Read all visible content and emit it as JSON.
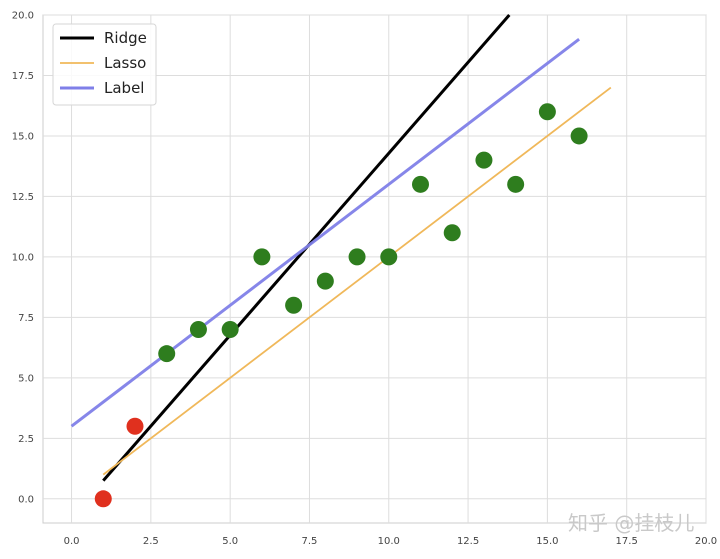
{
  "chart_data": {
    "type": "scatter",
    "xlim": [
      -0.9,
      20.0
    ],
    "ylim": [
      -1.0,
      20.0
    ],
    "xticks": [
      "0.0",
      "2.5",
      "5.0",
      "7.5",
      "10.0",
      "12.5",
      "15.0",
      "17.5",
      "20.0"
    ],
    "yticks": [
      "0.0",
      "2.5",
      "5.0",
      "7.5",
      "10.0",
      "12.5",
      "15.0",
      "17.5",
      "20.0"
    ],
    "grid": true,
    "legend_position": "top-left",
    "series": [
      {
        "name": "Ridge",
        "kind": "line",
        "color": "#000000",
        "x": [
          1.0,
          13.8
        ],
        "y": [
          0.75,
          20.0
        ]
      },
      {
        "name": "Lasso",
        "kind": "line",
        "color": "#f0b85a",
        "x": [
          1.0,
          17.0
        ],
        "y": [
          1.0,
          17.0
        ]
      },
      {
        "name": "Label",
        "kind": "line",
        "color": "#7f7fe8",
        "x": [
          0.0,
          16.0
        ],
        "y": [
          3.0,
          19.0
        ]
      }
    ],
    "points": [
      {
        "x": 1,
        "y": 0,
        "color": "#e0301e"
      },
      {
        "x": 2,
        "y": 3,
        "color": "#e0301e"
      },
      {
        "x": 3,
        "y": 6,
        "color": "#2e7d1e"
      },
      {
        "x": 4,
        "y": 7,
        "color": "#2e7d1e"
      },
      {
        "x": 5,
        "y": 7,
        "color": "#2e7d1e"
      },
      {
        "x": 6,
        "y": 10,
        "color": "#2e7d1e"
      },
      {
        "x": 7,
        "y": 8,
        "color": "#2e7d1e"
      },
      {
        "x": 8,
        "y": 9,
        "color": "#2e7d1e"
      },
      {
        "x": 9,
        "y": 10,
        "color": "#2e7d1e"
      },
      {
        "x": 10,
        "y": 10,
        "color": "#2e7d1e"
      },
      {
        "x": 11,
        "y": 13,
        "color": "#2e7d1e"
      },
      {
        "x": 12,
        "y": 11,
        "color": "#2e7d1e"
      },
      {
        "x": 13,
        "y": 14,
        "color": "#2e7d1e"
      },
      {
        "x": 14,
        "y": 13,
        "color": "#2e7d1e"
      },
      {
        "x": 15,
        "y": 16,
        "color": "#2e7d1e"
      },
      {
        "x": 16,
        "y": 15,
        "color": "#2e7d1e"
      }
    ]
  },
  "watermark": "知乎 @挂枝儿",
  "colors": {
    "grid": "#dddddd",
    "frame": "#cccccc"
  }
}
